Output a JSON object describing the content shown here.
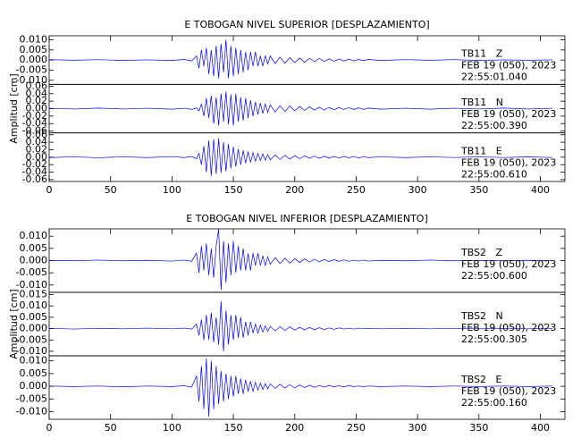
{
  "chart_data": [
    {
      "type": "line",
      "title": "E TOBOGAN NIVEL SUPERIOR [DESPLAZAMIENTO]",
      "y_label": "Amplitud [cm]",
      "color": "#0000ff",
      "xlim": [
        0,
        420
      ],
      "xticks": [
        0,
        50,
        100,
        150,
        200,
        250,
        300,
        350,
        400
      ],
      "x": [
        0,
        20,
        40,
        60,
        80,
        100,
        110,
        116,
        120,
        122,
        124,
        126,
        128,
        130,
        132,
        134,
        136,
        138,
        140,
        142,
        144,
        146,
        148,
        150,
        152,
        154,
        156,
        158,
        160,
        162,
        164,
        166,
        168,
        170,
        172,
        174,
        176,
        178,
        180,
        184,
        188,
        192,
        196,
        200,
        204,
        208,
        212,
        216,
        220,
        224,
        228,
        232,
        236,
        240,
        244,
        248,
        252,
        256,
        260,
        270,
        290,
        310,
        330,
        350,
        370,
        390,
        410
      ],
      "panels": [
        {
          "station": "TB11   Z",
          "date": "FEB 19 (050), 2023",
          "time": "22:55:01.040",
          "ylim": [
            -0.012,
            0.012
          ],
          "yticks": [
            {
              "value": -0.01,
              "label": "-0.010"
            },
            -0.005,
            {
              "value": 0,
              "label": "0.000"
            },
            0.005,
            {
              "value": 0.01,
              "label": "0.010"
            }
          ],
          "values": [
            0.0002,
            -0.0001,
            0.0002,
            -0.0002,
            0.0001,
            -0.0002,
            0.0003,
            -0.0004,
            0.002,
            -0.004,
            0.005,
            -0.003,
            0.006,
            -0.007,
            0.005,
            -0.008,
            0.007,
            -0.009,
            0.008,
            -0.006,
            0.01,
            -0.009,
            0.007,
            -0.008,
            0.006,
            -0.007,
            0.005,
            -0.006,
            0.004,
            -0.005,
            0.004,
            -0.003,
            0.004,
            -0.003,
            0.002,
            -0.003,
            0.002,
            -0.002,
            0.002,
            -0.0018,
            0.0015,
            -0.0016,
            0.0012,
            -0.0013,
            0.001,
            -0.0011,
            0.0009,
            -0.0008,
            0.0008,
            -0.0007,
            0.0006,
            -0.0006,
            0.0005,
            -0.0005,
            0.0004,
            -0.0004,
            0.0003,
            -0.0003,
            0.0003,
            -0.0002,
            0.0002,
            -0.0001,
            0.0002,
            -0.0002,
            0.0001,
            -0.0001,
            0.0001
          ]
        },
        {
          "station": "TB11   N",
          "date": "FEB 19 (050), 2023",
          "time": "22:55:00.390",
          "ylim": [
            -0.065,
            0.065
          ],
          "yticks": [
            -0.06,
            -0.04,
            -0.02,
            {
              "value": 0,
              "label": "0.00"
            },
            0.02,
            0.04,
            0.06
          ],
          "values": [
            0.001,
            -0.001,
            0.0015,
            -0.001,
            0.001,
            -0.0015,
            0.001,
            -0.002,
            0.002,
            -0.006,
            0.012,
            -0.02,
            0.028,
            -0.025,
            0.035,
            -0.04,
            0.03,
            -0.045,
            0.04,
            -0.035,
            0.045,
            -0.042,
            0.038,
            -0.045,
            0.04,
            -0.035,
            0.03,
            -0.032,
            0.028,
            -0.025,
            0.022,
            -0.02,
            0.018,
            -0.016,
            0.015,
            -0.013,
            0.012,
            -0.01,
            0.01,
            -0.009,
            0.008,
            -0.008,
            0.007,
            -0.006,
            0.006,
            -0.005,
            0.005,
            -0.004,
            0.004,
            -0.004,
            0.003,
            -0.003,
            0.003,
            -0.0025,
            0.0025,
            -0.002,
            0.002,
            -0.002,
            0.0015,
            -0.0015,
            0.001,
            -0.0015,
            0.001,
            -0.001,
            0.0015,
            -0.001,
            0.001
          ]
        },
        {
          "station": "TB11   E",
          "date": "FEB 19 (050), 2023",
          "time": "22:55:00.610",
          "ylim": [
            -0.065,
            0.065
          ],
          "yticks": [
            -0.06,
            -0.04,
            -0.02,
            {
              "value": 0,
              "label": "0.00"
            },
            0.02,
            0.04,
            0.06
          ],
          "values": [
            -0.001,
            0.001,
            -0.0015,
            0.001,
            -0.001,
            0.0015,
            -0.001,
            0.002,
            -0.004,
            0.01,
            -0.02,
            0.03,
            -0.04,
            0.045,
            -0.05,
            0.048,
            -0.045,
            0.05,
            -0.042,
            0.04,
            -0.038,
            0.035,
            -0.03,
            0.028,
            -0.025,
            0.022,
            -0.02,
            0.018,
            -0.016,
            0.015,
            -0.014,
            0.012,
            -0.011,
            0.01,
            -0.009,
            0.009,
            -0.008,
            0.007,
            -0.007,
            0.006,
            -0.006,
            0.005,
            -0.005,
            0.004,
            -0.004,
            0.004,
            -0.003,
            0.003,
            -0.003,
            0.0025,
            -0.0025,
            0.002,
            -0.002,
            0.002,
            -0.0015,
            0.0015,
            -0.0015,
            0.001,
            -0.001,
            0.001,
            -0.001,
            0.001,
            -0.0008,
            0.001,
            -0.0008,
            0.0008,
            -0.0008
          ]
        }
      ]
    },
    {
      "type": "line",
      "title": "E TOBOGAN NIVEL INFERIOR [DESPLAZAMIENTO]",
      "y_label": "Amplitud [cm]",
      "color": "#0000ff",
      "xlim": [
        0,
        420
      ],
      "xticks": [
        0,
        50,
        100,
        150,
        200,
        250,
        300,
        350,
        400
      ],
      "x": [
        0,
        20,
        40,
        60,
        80,
        100,
        110,
        116,
        120,
        122,
        124,
        126,
        128,
        130,
        132,
        134,
        136,
        138,
        140,
        142,
        144,
        146,
        148,
        150,
        152,
        154,
        156,
        158,
        160,
        162,
        164,
        166,
        168,
        170,
        172,
        174,
        176,
        178,
        180,
        184,
        188,
        192,
        196,
        200,
        204,
        208,
        212,
        216,
        220,
        224,
        228,
        232,
        236,
        240,
        244,
        248,
        252,
        256,
        260,
        270,
        290,
        310,
        330,
        350,
        370,
        390,
        410
      ],
      "panels": [
        {
          "station": "TBS2   Z",
          "date": "FEB 19 (050), 2023",
          "time": "22:55:00.600",
          "ylim": [
            -0.013,
            0.013
          ],
          "yticks": [
            {
              "value": -0.01,
              "label": "-0.010"
            },
            -0.005,
            {
              "value": 0,
              "label": "0.000"
            },
            0.005,
            {
              "value": 0.01,
              "label": "0.010"
            }
          ],
          "values": [
            0.0001,
            -0.0001,
            0.0002,
            -0.0001,
            0.0001,
            -0.0002,
            0.0002,
            -0.0003,
            0.003,
            -0.005,
            0.006,
            -0.004,
            0.007,
            -0.006,
            0.005,
            -0.007,
            0.006,
            0.013,
            -0.012,
            0.008,
            -0.009,
            0.007,
            -0.006,
            0.008,
            -0.005,
            0.006,
            -0.004,
            0.005,
            -0.004,
            0.003,
            -0.004,
            0.003,
            -0.002,
            0.003,
            -0.002,
            0.002,
            -0.002,
            0.0015,
            -0.0015,
            0.0012,
            -0.0012,
            0.001,
            -0.001,
            0.0008,
            -0.0008,
            0.0007,
            -0.0006,
            0.0006,
            -0.0005,
            0.0005,
            -0.0004,
            0.0004,
            -0.0003,
            0.0003,
            -0.0003,
            0.0002,
            -0.0002,
            0.0002,
            -0.0002,
            0.0001,
            -0.0001,
            0.0002,
            -0.0001,
            0.0001,
            -0.0001,
            0.0001,
            -0.0001
          ]
        },
        {
          "station": "TBS2   N",
          "date": "FEB 19 (050), 2023",
          "time": "22:55:00.305",
          "ylim": [
            -0.012,
            0.016
          ],
          "yticks": [
            {
              "value": -0.01,
              "label": "-0.010"
            },
            -0.005,
            {
              "value": 0,
              "label": "0.000"
            },
            0.005,
            {
              "value": 0.01,
              "label": "0.010"
            },
            0.015
          ],
          "values": [
            0.0001,
            -0.0002,
            0.0001,
            -0.0001,
            0.0002,
            -0.0001,
            0.0002,
            -0.0002,
            0.002,
            -0.003,
            0.004,
            -0.005,
            0.006,
            -0.005,
            0.007,
            -0.006,
            0.005,
            -0.007,
            0.012,
            -0.01,
            0.008,
            -0.007,
            0.006,
            -0.005,
            0.006,
            -0.004,
            0.005,
            -0.004,
            0.003,
            -0.003,
            0.003,
            -0.002,
            0.002,
            -0.002,
            0.0015,
            -0.0015,
            0.0012,
            -0.0012,
            0.001,
            -0.001,
            0.0009,
            -0.0008,
            0.0008,
            -0.0007,
            0.0006,
            -0.0006,
            0.0005,
            -0.0005,
            0.0004,
            -0.0004,
            0.0003,
            -0.0003,
            0.0003,
            -0.0002,
            0.0002,
            -0.0002,
            0.0002,
            -0.0001,
            0.0001,
            -0.0001,
            0.0001,
            -0.0001,
            0.0001,
            -0.0001,
            0.0001,
            -0.0001,
            0.0001
          ]
        },
        {
          "station": "TBS2   E",
          "date": "FEB 19 (050), 2023",
          "time": "22:55:00.160",
          "ylim": [
            -0.013,
            0.012
          ],
          "yticks": [
            {
              "value": -0.01,
              "label": "-0.010"
            },
            -0.005,
            {
              "value": 0,
              "label": "0.000"
            },
            0.005,
            {
              "value": 0.01,
              "label": "0.010"
            }
          ],
          "values": [
            0.0001,
            -0.0001,
            0.0001,
            -0.0002,
            0.0001,
            -0.0001,
            0.0002,
            -0.0003,
            0.004,
            -0.006,
            0.008,
            -0.009,
            0.011,
            -0.012,
            0.01,
            -0.009,
            0.008,
            -0.007,
            0.006,
            -0.006,
            0.005,
            -0.005,
            0.004,
            -0.004,
            0.004,
            -0.003,
            0.003,
            -0.003,
            0.0025,
            -0.002,
            0.002,
            -0.002,
            0.0015,
            -0.0015,
            0.0012,
            -0.0012,
            0.001,
            -0.001,
            0.0009,
            -0.0008,
            0.0008,
            -0.0007,
            0.0006,
            -0.0006,
            0.0005,
            -0.0005,
            0.0004,
            -0.0004,
            0.0003,
            -0.0003,
            0.0003,
            -0.0002,
            0.0002,
            -0.0002,
            0.0002,
            -0.0001,
            0.0001,
            -0.0001,
            0.0001,
            -0.0001,
            0.0001,
            -0.0001,
            0.0001,
            -0.0001,
            0.0001,
            -0.0001,
            0.0001
          ]
        }
      ]
    }
  ]
}
